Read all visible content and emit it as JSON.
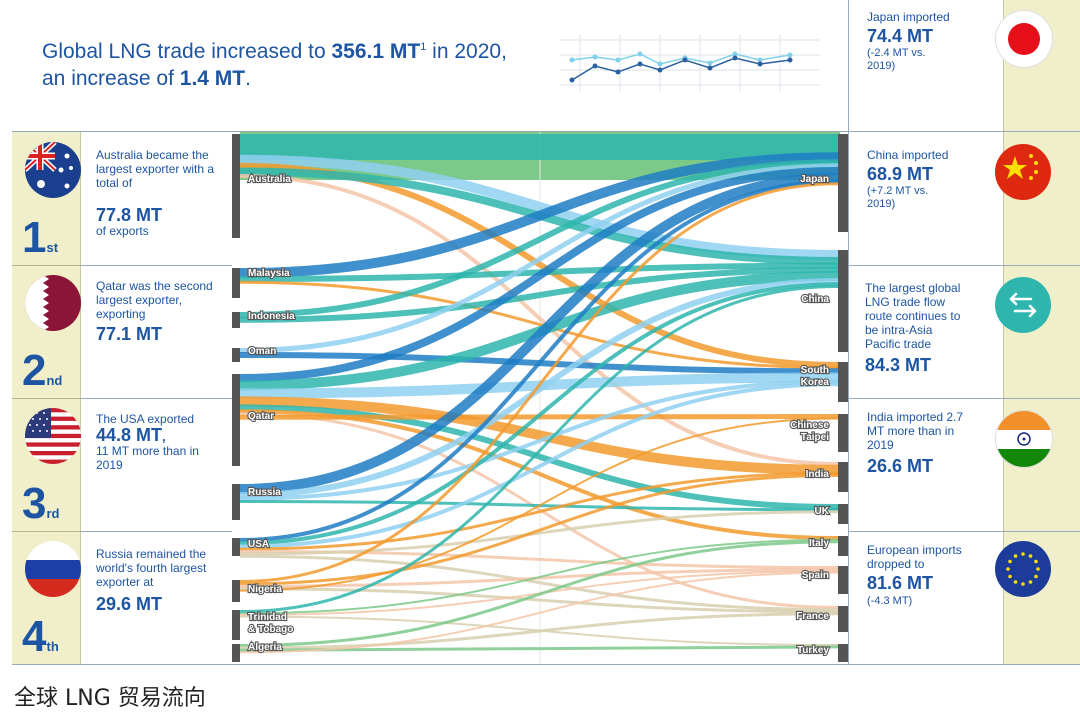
{
  "headline": {
    "line1_pre": "Global LNG trade increased to ",
    "line1_value": "356.1 MT",
    "line1_sup": "1",
    "line1_post": " in 2020,",
    "line2_pre": "an increase of ",
    "line2_value": "1.4 MT",
    "line2_post": "."
  },
  "ranks": [
    {
      "num": "1",
      "suffix": "st",
      "text_pre": "Australia became the largest exporter with a total of",
      "value": "77.8 MT",
      "text_post": "of exports",
      "flag": "australia-flag-icon"
    },
    {
      "num": "2",
      "suffix": "nd",
      "text_pre": "Qatar was the second largest exporter, exporting",
      "value": "77.1 MT",
      "text_post": "",
      "flag": "qatar-flag-icon"
    },
    {
      "num": "3",
      "suffix": "rd",
      "text_pre": "The USA exported",
      "value": "44.8 MT",
      "value_tail": ",",
      "text_post": "11 MT more than in 2019",
      "flag": "usa-flag-icon"
    },
    {
      "num": "4",
      "suffix": "th",
      "text_pre": "Russia remained the world's fourth largest exporter at",
      "value": "29.6 MT",
      "text_post": "",
      "flag": "russia-flag-icon"
    }
  ],
  "right_panel": [
    {
      "text_pre": "Japan imported",
      "value": "74.4 MT",
      "text_post": "(-2.4 MT vs. 2019)",
      "flag": "japan-flag-icon"
    },
    {
      "text_pre": "China imported",
      "value": "68.9 MT",
      "text_post": "(+7.2 MT vs. 2019)",
      "flag": "china-flag-icon"
    },
    {
      "text_pre": "The largest global LNG trade flow route continues to be intra-Asia Pacific trade",
      "value": "84.3 MT",
      "text_post": "",
      "flag": "arrows-exchange-icon"
    },
    {
      "text_pre": "India imported 2.7 MT more than in 2019",
      "value": "26.6 MT",
      "text_post": "",
      "flag": "india-flag-icon"
    },
    {
      "text_pre": "European imports dropped to",
      "value": "81.6 MT",
      "text_post": "(-4.3 MT)",
      "flag": "eu-flag-icon"
    }
  ],
  "exporters": [
    "Australia",
    "Malaysia",
    "Indonesia",
    "Oman",
    "Qatar",
    "Russia",
    "USA",
    "Nigeria",
    "Trinidad & Tobago",
    "Algeria"
  ],
  "importers": [
    "Japan",
    "China",
    "South Korea",
    "Chinese Taipei",
    "India",
    "UK",
    "Italy",
    "Spain",
    "France",
    "Turkey"
  ],
  "caption": "全球 LNG 贸易流向",
  "colors": {
    "navy": "#1d55a3",
    "beige": "#f1efc9",
    "green": "#7dc98a",
    "teal": "#2eb5ad",
    "blue": "#1f7cc4",
    "lightblue": "#8fd0f0",
    "orange": "#f29a2e",
    "peach": "#f3c6a8",
    "tan": "#d8cfae"
  }
}
